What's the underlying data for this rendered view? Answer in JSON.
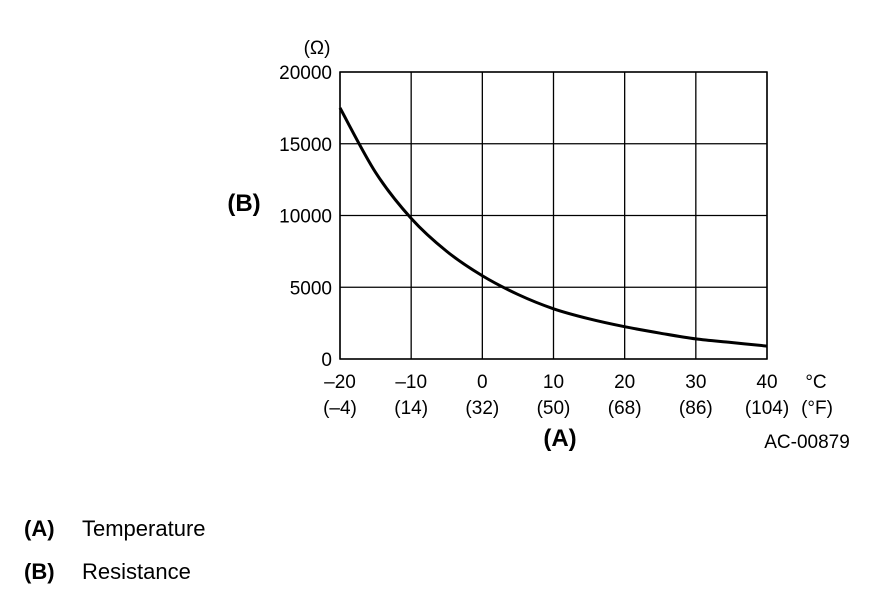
{
  "chart_data": {
    "type": "line",
    "y_unit": "(Ω)",
    "y_axis_marker": "(B)",
    "x_axis_marker": "(A)",
    "ylim": [
      0,
      20000
    ],
    "xlim": [
      -20,
      40
    ],
    "y_ticks": [
      0,
      5000,
      10000,
      15000,
      20000
    ],
    "y_tick_labels": [
      "0",
      "5000",
      "10000",
      "15000",
      "20000"
    ],
    "x_ticks": [
      -20,
      -10,
      0,
      10,
      20,
      30,
      40
    ],
    "x_tick_labels_c": [
      "–20",
      "–10",
      "0",
      "10",
      "20",
      "30",
      "40"
    ],
    "x_tick_labels_f": [
      "(–4)",
      "(14)",
      "(32)",
      "(50)",
      "(68)",
      "(86)",
      "(104)"
    ],
    "x_unit_c": "°C",
    "x_unit_f": "(°F)",
    "grid": true,
    "series": [
      {
        "x": [
          -20,
          -15,
          -10,
          -5,
          0,
          5,
          10,
          15,
          20,
          25,
          30,
          35,
          40
        ],
        "values": [
          17500,
          13000,
          9800,
          7500,
          5800,
          4500,
          3500,
          2800,
          2250,
          1800,
          1400,
          1150,
          900
        ],
        "color": "#000000"
      }
    ]
  },
  "figure_id": "AC-00879",
  "legend": [
    {
      "key": "(A)",
      "label": "Temperature"
    },
    {
      "key": "(B)",
      "label": "Resistance"
    }
  ]
}
